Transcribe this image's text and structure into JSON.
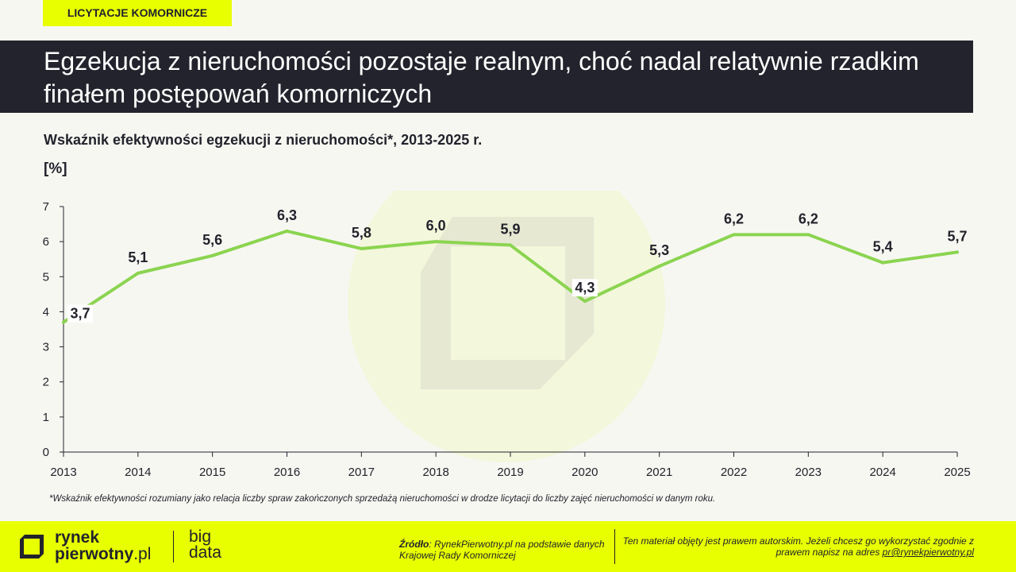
{
  "tag": "LICYTACJE KOMORNICZE",
  "headline": "Egzekucja z nieruchomości pozostaje realnym, choć nadal relatywnie rzadkim finałem postępowań komorniczych",
  "chart_data": {
    "type": "line",
    "title": "Wskaźnik efektywności egzekucji z nieruchomości*, 2013-2025 r.",
    "ylabel": "[%]",
    "xlabel": "",
    "x": [
      "2013",
      "2014",
      "2015",
      "2016",
      "2017",
      "2018",
      "2019",
      "2020",
      "2021",
      "2022",
      "2023",
      "2024",
      "2025"
    ],
    "values": [
      3.7,
      5.1,
      5.6,
      6.3,
      5.8,
      6.0,
      5.9,
      4.3,
      5.3,
      6.2,
      6.2,
      5.4,
      5.7
    ],
    "data_labels": [
      "3,7",
      "5,1",
      "5,6",
      "6,3",
      "5,8",
      "6,0",
      "5,9",
      "4,3",
      "5,3",
      "6,2",
      "6,2",
      "5,4",
      "5,7"
    ],
    "ylim": [
      0,
      7
    ],
    "yticks": [
      "0",
      "1",
      "2",
      "3",
      "4",
      "5",
      "6",
      "7"
    ],
    "grid": false,
    "legend": "none",
    "line_color": "#8bd450"
  },
  "footnote": "*Wskaźnik efektywności rozumiany jako relacja liczby spraw zakończonych sprzedażą nieruchomości w drodze licytacji do liczby zajęć nieruchomości w danym roku.",
  "footer": {
    "logo_line1": "rynek",
    "logo_line2": "pierwotny",
    "logo_suffix": ".pl",
    "bigdata_line1": "big",
    "bigdata_line2": "data",
    "source_label": "Źródło",
    "source_text": ": RynekPierwotny.pl na podstawie danych Krajowej Rady Komorniczej",
    "copyright_text": "Ten materiał objęty jest prawem autorskim. Jeżeli chcesz go wykorzystać zgodnie z prawem napisz na adres ",
    "copyright_email": "pr@rynekpierwotny.pl"
  },
  "colors": {
    "accent": "#e8ff00",
    "dark": "#22232c",
    "background": "#f7f7f2",
    "line": "#8bd450"
  }
}
